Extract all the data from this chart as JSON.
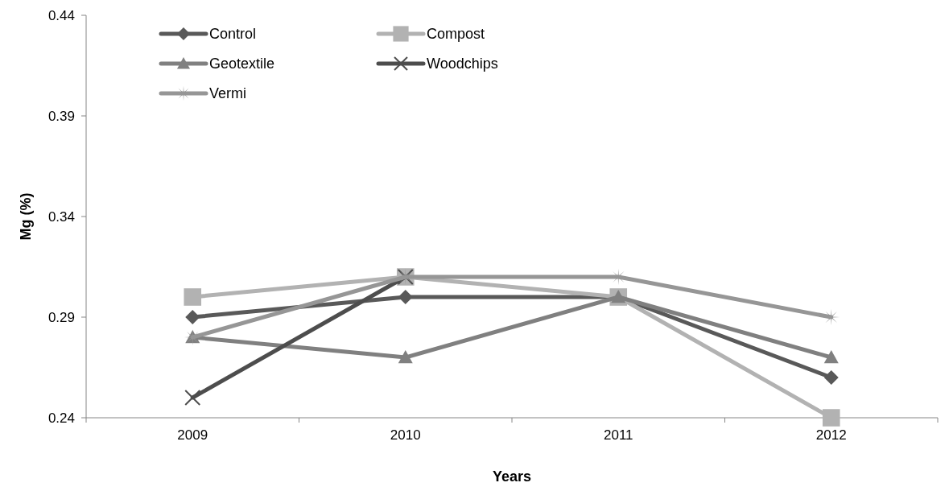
{
  "chart_data": {
    "type": "line",
    "xlabel": "Years",
    "ylabel": "Mg (%)",
    "categories": [
      "2009",
      "2010",
      "2011",
      "2012"
    ],
    "ylim": [
      0.24,
      0.44
    ],
    "yticks": [
      0.24,
      0.29,
      0.34,
      0.39,
      0.44
    ],
    "grid": false,
    "legend": "top left",
    "line_style": "solid",
    "series": [
      {
        "name": "Control",
        "color": "#595959",
        "marker": "diamond",
        "values": [
          0.29,
          0.3,
          0.3,
          0.26
        ]
      },
      {
        "name": "Compost",
        "color": "#b2b2b2",
        "marker": "square",
        "values": [
          0.3,
          0.31,
          0.3,
          0.24
        ]
      },
      {
        "name": "Geotextile",
        "color": "#808080",
        "marker": "triangle",
        "values": [
          0.28,
          0.27,
          0.3,
          0.27
        ]
      },
      {
        "name": "Woodchips",
        "color": "#4d4d4d",
        "marker": "cross",
        "values": [
          0.25,
          0.31,
          null,
          null
        ]
      },
      {
        "name": "Vermi",
        "color": "#969696",
        "marker": "star",
        "values": [
          0.28,
          0.31,
          0.31,
          0.29
        ]
      }
    ]
  }
}
